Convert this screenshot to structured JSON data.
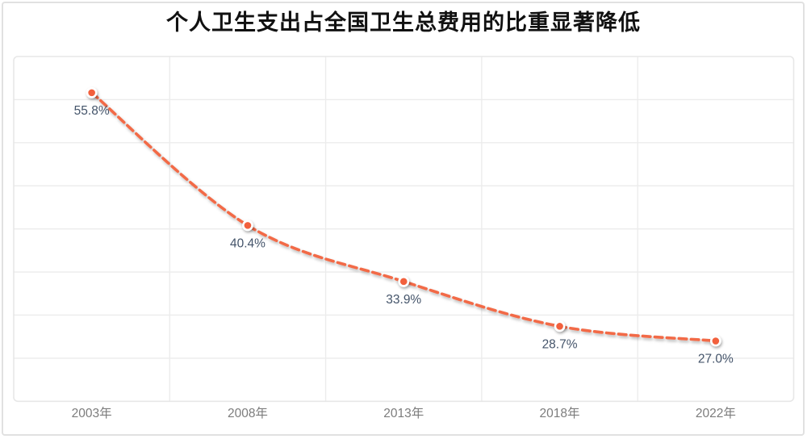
{
  "chart_data": {
    "type": "line",
    "title": "个人卫生支出占全国卫生总费用的比重显著降低",
    "categories": [
      "2003年",
      "2008年",
      "2013年",
      "2018年",
      "2022年"
    ],
    "values": [
      55.8,
      40.4,
      33.9,
      28.7,
      27.0
    ],
    "point_labels": [
      "55.8%",
      "40.4%",
      "33.9%",
      "28.7%",
      "27.0%"
    ],
    "xlabel": "",
    "ylabel": "",
    "ylim": [
      20,
      60
    ],
    "y_gridline_step": 5,
    "grid": true,
    "legend": "none",
    "line_style": "dashed",
    "smooth": true,
    "colors": {
      "line": "#F26A46",
      "marker_fill": "#F2603C",
      "marker_ring": "#FFFFFF",
      "data_label": "#44546A",
      "axis_label": "#7C7C7C",
      "gridline": "#ECECEC",
      "plot_border": "#E7E7E7",
      "card_border": "#E1E1E1",
      "title": "#111111"
    }
  }
}
